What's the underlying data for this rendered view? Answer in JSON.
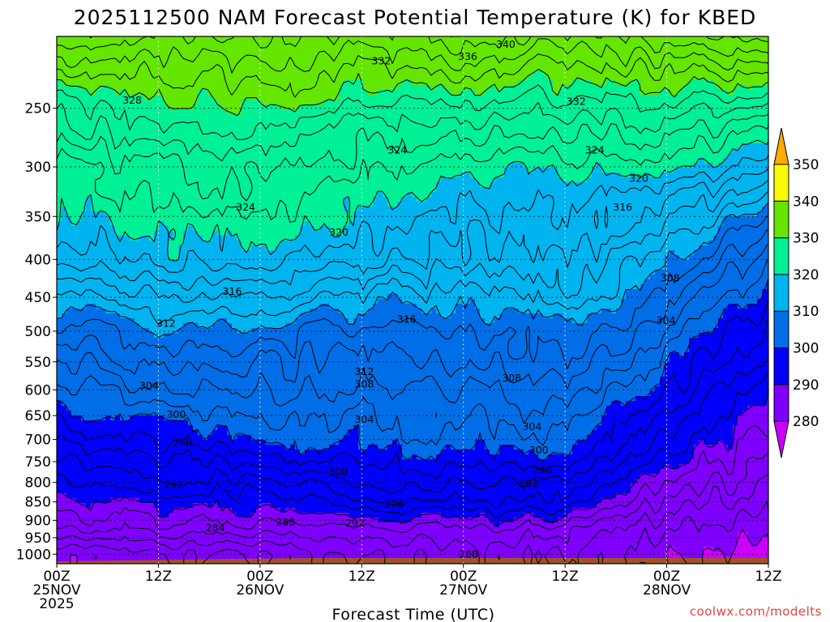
{
  "chart_data": {
    "type": "heatmap",
    "title": "2025112500 NAM Forecast Potential Temperature (K) for KBED",
    "xlabel": "Forecast Time (UTC)",
    "ylabel": "",
    "x_ticks": [
      {
        "hours": 0,
        "line1": "00Z",
        "line2": "25NOV",
        "line3": "2025"
      },
      {
        "hours": 12,
        "line1": "12Z",
        "line2": "",
        "line3": ""
      },
      {
        "hours": 24,
        "line1": "00Z",
        "line2": "26NOV",
        "line3": ""
      },
      {
        "hours": 36,
        "line1": "12Z",
        "line2": "",
        "line3": ""
      },
      {
        "hours": 48,
        "line1": "00Z",
        "line2": "27NOV",
        "line3": ""
      },
      {
        "hours": 60,
        "line1": "12Z",
        "line2": "",
        "line3": ""
      },
      {
        "hours": 72,
        "line1": "00Z",
        "line2": "28NOV",
        "line3": ""
      },
      {
        "hours": 84,
        "line1": "12Z",
        "line2": "",
        "line3": ""
      }
    ],
    "xlim": [
      0,
      84
    ],
    "y_ticks": [
      250,
      300,
      350,
      400,
      450,
      500,
      550,
      600,
      650,
      700,
      750,
      800,
      850,
      900,
      950,
      1000
    ],
    "y_tick_labels": [
      "250",
      "300",
      "350",
      "400",
      "450",
      "500",
      "550",
      "600",
      "650",
      "700",
      "750",
      "800",
      "850",
      "900",
      "950",
      "1000"
    ],
    "ylim_hpa": [
      1030,
      200
    ],
    "yscale": "log-pressure",
    "grid": true,
    "colorbar": {
      "levels": [
        280,
        290,
        300,
        310,
        320,
        330,
        340,
        350
      ],
      "labels": [
        "280",
        "290",
        "300",
        "310",
        "320",
        "330",
        "340",
        "350"
      ],
      "colors": [
        "#cc00ff",
        "#7f00ff",
        "#0000ff",
        "#006ee6",
        "#00b4f0",
        "#00f096",
        "#64e600",
        "#fafa00",
        "#ffaa00"
      ]
    },
    "profile_hours": [
      0,
      12,
      24,
      36,
      48,
      60,
      72,
      84
    ],
    "profile_pressures": [
      1000,
      925,
      850,
      700,
      500,
      400,
      300,
      250,
      200
    ],
    "theta_profiles": [
      [
        281,
        286,
        289,
        296,
        307,
        316,
        322,
        327,
        337
      ],
      [
        282,
        287,
        290,
        299,
        310,
        319,
        324,
        329,
        335
      ],
      [
        282,
        287,
        291,
        300,
        309,
        319,
        325,
        330,
        337
      ],
      [
        284,
        287,
        293,
        301,
        307,
        317,
        323,
        327,
        335
      ],
      [
        285,
        288,
        294,
        301,
        307,
        315,
        320,
        327,
        338
      ],
      [
        284,
        287,
        294,
        301,
        310,
        316,
        321,
        327,
        335
      ],
      [
        280,
        282,
        285,
        293,
        304,
        311,
        320,
        327,
        337
      ],
      [
        279,
        281,
        283,
        287,
        295,
        302,
        316,
        325,
        340
      ]
    ],
    "contour_labels": [
      {
        "value": "340",
        "hours": 53,
        "hpa": 205
      },
      {
        "value": "336",
        "hours": 48.5,
        "hpa": 213
      },
      {
        "value": "332",
        "hours": 38.3,
        "hpa": 216
      },
      {
        "value": "332",
        "hours": 61.3,
        "hpa": 245
      },
      {
        "value": "328",
        "hours": 8.9,
        "hpa": 244
      },
      {
        "value": "324",
        "hours": 40.2,
        "hpa": 285
      },
      {
        "value": "324",
        "hours": 63.5,
        "hpa": 285
      },
      {
        "value": "324",
        "hours": 22.3,
        "hpa": 340
      },
      {
        "value": "320",
        "hours": 68.7,
        "hpa": 311
      },
      {
        "value": "320",
        "hours": 33.3,
        "hpa": 368
      },
      {
        "value": "316",
        "hours": 66.8,
        "hpa": 340
      },
      {
        "value": "316",
        "hours": 20.7,
        "hpa": 442
      },
      {
        "value": "316",
        "hours": 41.3,
        "hpa": 482
      },
      {
        "value": "312",
        "hours": 12.9,
        "hpa": 488
      },
      {
        "value": "312",
        "hours": 36.3,
        "hpa": 567
      },
      {
        "value": "308",
        "hours": 72.4,
        "hpa": 424
      },
      {
        "value": "308",
        "hours": 36.3,
        "hpa": 590
      },
      {
        "value": "308",
        "hours": 53.7,
        "hpa": 579
      },
      {
        "value": "304",
        "hours": 71.9,
        "hpa": 484
      },
      {
        "value": "304",
        "hours": 10.9,
        "hpa": 593
      },
      {
        "value": "304",
        "hours": 36.3,
        "hpa": 658
      },
      {
        "value": "304",
        "hours": 56.1,
        "hpa": 673
      },
      {
        "value": "300",
        "hours": 14.1,
        "hpa": 648
      },
      {
        "value": "300",
        "hours": 56.9,
        "hpa": 724
      },
      {
        "value": "300",
        "hours": 33.2,
        "hpa": 774
      },
      {
        "value": "296",
        "hours": 14.8,
        "hpa": 708
      },
      {
        "value": "296",
        "hours": 57.3,
        "hpa": 771
      },
      {
        "value": "296",
        "hours": 39.8,
        "hpa": 856
      },
      {
        "value": "292",
        "hours": 13.8,
        "hpa": 806
      },
      {
        "value": "292",
        "hours": 55.7,
        "hpa": 803
      },
      {
        "value": "292",
        "hours": 35.2,
        "hpa": 908
      },
      {
        "value": "288",
        "hours": 27.0,
        "hpa": 906
      },
      {
        "value": "288",
        "hours": 48.6,
        "hpa": 1000
      },
      {
        "value": "284",
        "hours": 18.7,
        "hpa": 922
      }
    ]
  },
  "credit": "coolwx.com/modelts",
  "colors": {
    "ground": "#a0522d",
    "contour_line": "#000000",
    "grid": "#000000",
    "credit_text": "#e8413a"
  }
}
